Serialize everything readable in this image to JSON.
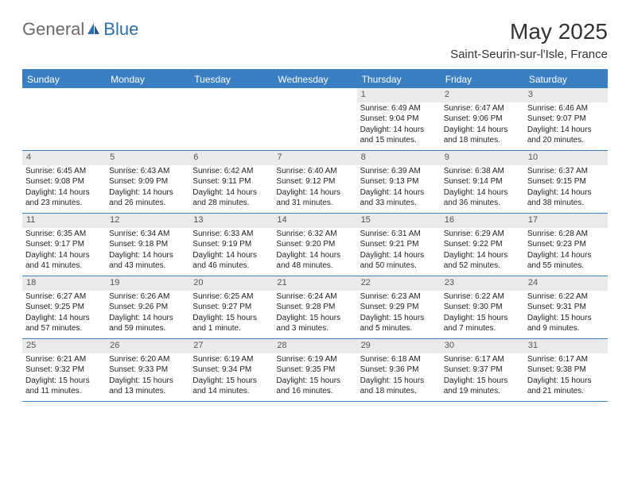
{
  "brand": {
    "part1": "General",
    "part2": "Blue"
  },
  "title": "May 2025",
  "location": "Saint-Seurin-sur-l'Isle, France",
  "colors": {
    "header_bg": "#3a7fc4",
    "header_text": "#ffffff",
    "daynum_bg": "#eaeaea",
    "border": "#3a7fc4",
    "brand_gray": "#6a6a6a",
    "brand_blue": "#2b6fb3"
  },
  "dow": [
    "Sunday",
    "Monday",
    "Tuesday",
    "Wednesday",
    "Thursday",
    "Friday",
    "Saturday"
  ],
  "weeks": [
    [
      null,
      null,
      null,
      null,
      {
        "n": "1",
        "sr": "Sunrise: 6:49 AM",
        "ss": "Sunset: 9:04 PM",
        "d1": "Daylight: 14 hours",
        "d2": "and 15 minutes."
      },
      {
        "n": "2",
        "sr": "Sunrise: 6:47 AM",
        "ss": "Sunset: 9:06 PM",
        "d1": "Daylight: 14 hours",
        "d2": "and 18 minutes."
      },
      {
        "n": "3",
        "sr": "Sunrise: 6:46 AM",
        "ss": "Sunset: 9:07 PM",
        "d1": "Daylight: 14 hours",
        "d2": "and 20 minutes."
      }
    ],
    [
      {
        "n": "4",
        "sr": "Sunrise: 6:45 AM",
        "ss": "Sunset: 9:08 PM",
        "d1": "Daylight: 14 hours",
        "d2": "and 23 minutes."
      },
      {
        "n": "5",
        "sr": "Sunrise: 6:43 AM",
        "ss": "Sunset: 9:09 PM",
        "d1": "Daylight: 14 hours",
        "d2": "and 26 minutes."
      },
      {
        "n": "6",
        "sr": "Sunrise: 6:42 AM",
        "ss": "Sunset: 9:11 PM",
        "d1": "Daylight: 14 hours",
        "d2": "and 28 minutes."
      },
      {
        "n": "7",
        "sr": "Sunrise: 6:40 AM",
        "ss": "Sunset: 9:12 PM",
        "d1": "Daylight: 14 hours",
        "d2": "and 31 minutes."
      },
      {
        "n": "8",
        "sr": "Sunrise: 6:39 AM",
        "ss": "Sunset: 9:13 PM",
        "d1": "Daylight: 14 hours",
        "d2": "and 33 minutes."
      },
      {
        "n": "9",
        "sr": "Sunrise: 6:38 AM",
        "ss": "Sunset: 9:14 PM",
        "d1": "Daylight: 14 hours",
        "d2": "and 36 minutes."
      },
      {
        "n": "10",
        "sr": "Sunrise: 6:37 AM",
        "ss": "Sunset: 9:15 PM",
        "d1": "Daylight: 14 hours",
        "d2": "and 38 minutes."
      }
    ],
    [
      {
        "n": "11",
        "sr": "Sunrise: 6:35 AM",
        "ss": "Sunset: 9:17 PM",
        "d1": "Daylight: 14 hours",
        "d2": "and 41 minutes."
      },
      {
        "n": "12",
        "sr": "Sunrise: 6:34 AM",
        "ss": "Sunset: 9:18 PM",
        "d1": "Daylight: 14 hours",
        "d2": "and 43 minutes."
      },
      {
        "n": "13",
        "sr": "Sunrise: 6:33 AM",
        "ss": "Sunset: 9:19 PM",
        "d1": "Daylight: 14 hours",
        "d2": "and 46 minutes."
      },
      {
        "n": "14",
        "sr": "Sunrise: 6:32 AM",
        "ss": "Sunset: 9:20 PM",
        "d1": "Daylight: 14 hours",
        "d2": "and 48 minutes."
      },
      {
        "n": "15",
        "sr": "Sunrise: 6:31 AM",
        "ss": "Sunset: 9:21 PM",
        "d1": "Daylight: 14 hours",
        "d2": "and 50 minutes."
      },
      {
        "n": "16",
        "sr": "Sunrise: 6:29 AM",
        "ss": "Sunset: 9:22 PM",
        "d1": "Daylight: 14 hours",
        "d2": "and 52 minutes."
      },
      {
        "n": "17",
        "sr": "Sunrise: 6:28 AM",
        "ss": "Sunset: 9:23 PM",
        "d1": "Daylight: 14 hours",
        "d2": "and 55 minutes."
      }
    ],
    [
      {
        "n": "18",
        "sr": "Sunrise: 6:27 AM",
        "ss": "Sunset: 9:25 PM",
        "d1": "Daylight: 14 hours",
        "d2": "and 57 minutes."
      },
      {
        "n": "19",
        "sr": "Sunrise: 6:26 AM",
        "ss": "Sunset: 9:26 PM",
        "d1": "Daylight: 14 hours",
        "d2": "and 59 minutes."
      },
      {
        "n": "20",
        "sr": "Sunrise: 6:25 AM",
        "ss": "Sunset: 9:27 PM",
        "d1": "Daylight: 15 hours",
        "d2": "and 1 minute."
      },
      {
        "n": "21",
        "sr": "Sunrise: 6:24 AM",
        "ss": "Sunset: 9:28 PM",
        "d1": "Daylight: 15 hours",
        "d2": "and 3 minutes."
      },
      {
        "n": "22",
        "sr": "Sunrise: 6:23 AM",
        "ss": "Sunset: 9:29 PM",
        "d1": "Daylight: 15 hours",
        "d2": "and 5 minutes."
      },
      {
        "n": "23",
        "sr": "Sunrise: 6:22 AM",
        "ss": "Sunset: 9:30 PM",
        "d1": "Daylight: 15 hours",
        "d2": "and 7 minutes."
      },
      {
        "n": "24",
        "sr": "Sunrise: 6:22 AM",
        "ss": "Sunset: 9:31 PM",
        "d1": "Daylight: 15 hours",
        "d2": "and 9 minutes."
      }
    ],
    [
      {
        "n": "25",
        "sr": "Sunrise: 6:21 AM",
        "ss": "Sunset: 9:32 PM",
        "d1": "Daylight: 15 hours",
        "d2": "and 11 minutes."
      },
      {
        "n": "26",
        "sr": "Sunrise: 6:20 AM",
        "ss": "Sunset: 9:33 PM",
        "d1": "Daylight: 15 hours",
        "d2": "and 13 minutes."
      },
      {
        "n": "27",
        "sr": "Sunrise: 6:19 AM",
        "ss": "Sunset: 9:34 PM",
        "d1": "Daylight: 15 hours",
        "d2": "and 14 minutes."
      },
      {
        "n": "28",
        "sr": "Sunrise: 6:19 AM",
        "ss": "Sunset: 9:35 PM",
        "d1": "Daylight: 15 hours",
        "d2": "and 16 minutes."
      },
      {
        "n": "29",
        "sr": "Sunrise: 6:18 AM",
        "ss": "Sunset: 9:36 PM",
        "d1": "Daylight: 15 hours",
        "d2": "and 18 minutes."
      },
      {
        "n": "30",
        "sr": "Sunrise: 6:17 AM",
        "ss": "Sunset: 9:37 PM",
        "d1": "Daylight: 15 hours",
        "d2": "and 19 minutes."
      },
      {
        "n": "31",
        "sr": "Sunrise: 6:17 AM",
        "ss": "Sunset: 9:38 PM",
        "d1": "Daylight: 15 hours",
        "d2": "and 21 minutes."
      }
    ]
  ]
}
